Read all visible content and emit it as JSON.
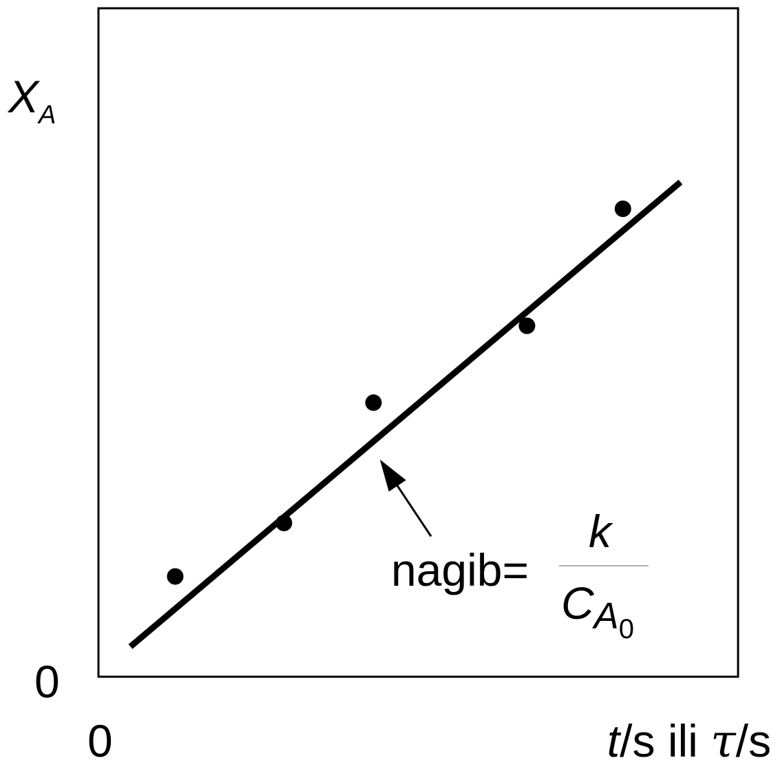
{
  "chart_data": {
    "type": "scatter",
    "title": "",
    "xlabel": {
      "t": "t",
      "unit_t": "/s ili ",
      "tau": "τ",
      "unit_tau": "/s"
    },
    "ylabel": {
      "main": "X",
      "sub": "A"
    },
    "x_origin_label": "0",
    "y_origin_label": "0",
    "xlim": [
      0,
      10
    ],
    "ylim": [
      0,
      10
    ],
    "grid": false,
    "points": [
      {
        "x": 1.2,
        "y": 1.5
      },
      {
        "x": 2.9,
        "y": 2.3
      },
      {
        "x": 4.3,
        "y": 4.1
      },
      {
        "x": 6.7,
        "y": 5.25
      },
      {
        "x": 8.2,
        "y": 7.0
      }
    ],
    "fit_line": {
      "x": [
        0.5,
        9.1
      ],
      "y": [
        0.45,
        7.4
      ]
    },
    "annotation": {
      "label": "nagib=",
      "numerator": "k",
      "denominator_main": "C",
      "denominator_sub": "A",
      "denominator_subsub": "0",
      "arrow_tail": {
        "x": 5.2,
        "y": 2.1
      },
      "arrow_head": {
        "x": 4.4,
        "y": 3.25
      }
    },
    "colors": {
      "ink": "#000000",
      "background": "#ffffff",
      "fraction_bar": "#999999"
    }
  }
}
